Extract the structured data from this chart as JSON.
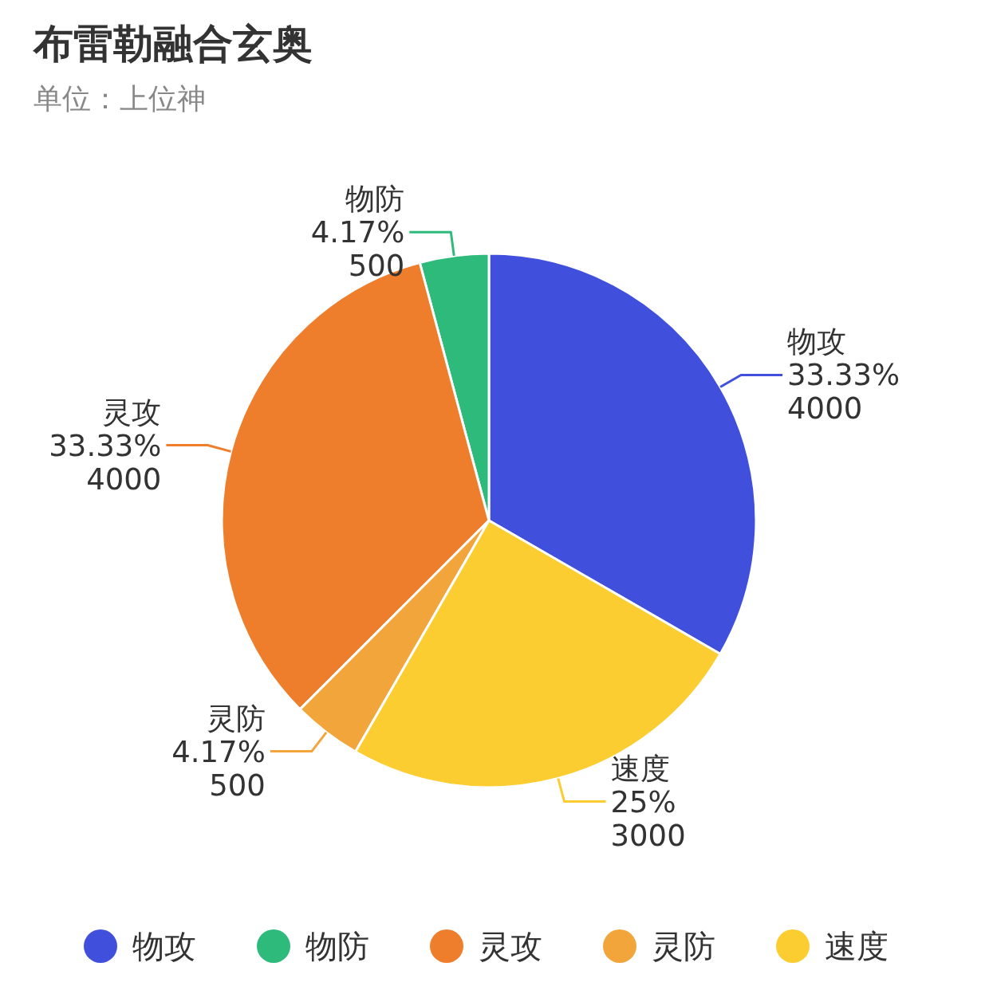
{
  "chart_data": {
    "type": "pie",
    "title": "布雷勒融合玄奥",
    "subtitle": "单位：上位神",
    "categories": [
      "物攻",
      "物防",
      "灵攻",
      "灵防",
      "速度"
    ],
    "values": [
      33.33,
      4.17,
      33.33,
      4.17,
      25
    ],
    "colors": [
      "#4050dc",
      "#2dba7a",
      "#ee7d2c",
      "#f2a53a",
      "#fccd30"
    ],
    "value_labels": [
      "33.33%\n4000",
      "4.17%\n500",
      "33.33%\n4000",
      "4.17%\n500",
      "25%\n3000"
    ],
    "legend": "bottom"
  }
}
